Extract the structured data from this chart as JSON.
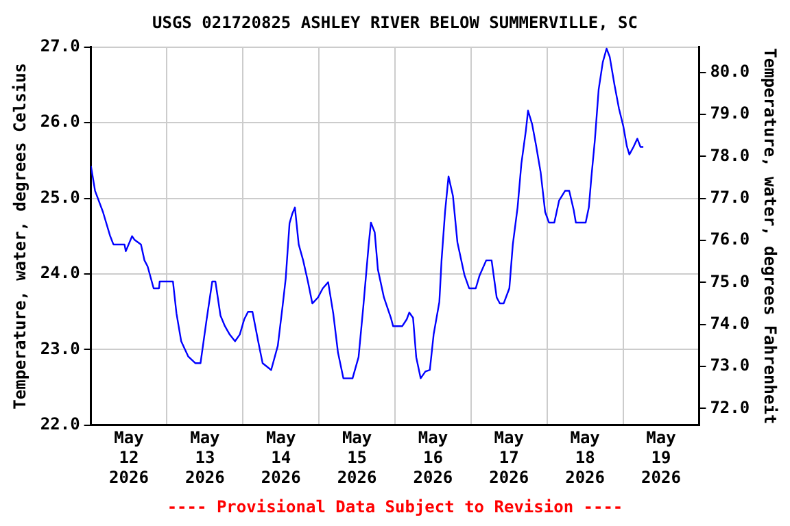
{
  "chart_data": {
    "type": "line",
    "title": "USGS 021720825 ASHLEY RIVER BELOW SUMMERVILLE, SC",
    "ylabel": "Temperature, water, degrees Celsius",
    "y2label": "Temperature, water, degrees Fahrenheit",
    "annotations": [
      "---- Provisional Data Subject to Revision ----"
    ],
    "xlim": [
      "2026-05-12T00:00",
      "2026-05-20T00:00"
    ],
    "xticks": [
      {
        "value": "2026-05-12T12:00",
        "label": "May 12 2026"
      },
      {
        "value": "2026-05-13T00:00",
        "label": null
      },
      {
        "value": "2026-05-13T12:00",
        "label": "May 13 2026"
      },
      {
        "value": "2026-05-14T00:00",
        "label": null
      },
      {
        "value": "2026-05-14T12:00",
        "label": "May 14 2026"
      },
      {
        "value": "2026-05-15T00:00",
        "label": null
      },
      {
        "value": "2026-05-15T12:00",
        "label": "May 15 2026"
      },
      {
        "value": "2026-05-16T00:00",
        "label": null
      },
      {
        "value": "2026-05-16T12:00",
        "label": "May 16 2026"
      },
      {
        "value": "2026-05-17T00:00",
        "label": null
      },
      {
        "value": "2026-05-17T12:00",
        "label": "May 17 2026"
      },
      {
        "value": "2026-05-18T00:00",
        "label": null
      },
      {
        "value": "2026-05-18T12:00",
        "label": "May 18 2026"
      },
      {
        "value": "2026-05-19T00:00",
        "label": null
      },
      {
        "value": "2026-05-19T12:00",
        "label": "May 19 2026"
      }
    ],
    "ylim": [
      22,
      27
    ],
    "yticks": [
      {
        "value": 22,
        "label": "22.0"
      },
      {
        "value": 23,
        "label": "23.0"
      },
      {
        "value": 24,
        "label": "24.0"
      },
      {
        "value": 25,
        "label": "25.0"
      },
      {
        "value": 26,
        "label": "26.0"
      },
      {
        "value": 27,
        "label": "27.0"
      }
    ],
    "y2lim": [
      71.6,
      80.6
    ],
    "y2ticks": [
      {
        "value": 72,
        "label": "72.0"
      },
      {
        "value": 73,
        "label": "73.0"
      },
      {
        "value": 74,
        "label": "74.0"
      },
      {
        "value": 75,
        "label": "75.0"
      },
      {
        "value": 76,
        "label": "76.0"
      },
      {
        "value": 77,
        "label": "77.0"
      },
      {
        "value": 78,
        "label": "78.0"
      },
      {
        "value": 79,
        "label": "79.0"
      },
      {
        "value": 80,
        "label": "80.0"
      }
    ],
    "grid": true,
    "legend": false,
    "marker": "none",
    "line_style": "solid",
    "series": [
      {
        "color": "#0000ff",
        "x": [
          "2026-05-12T00:00",
          "2026-05-12T01:18",
          "2026-05-12T03:48",
          "2026-05-12T06:00",
          "2026-05-12T07:06",
          "2026-05-12T10:36",
          "2026-05-12T11:00",
          "2026-05-12T13:00",
          "2026-05-12T13:48",
          "2026-05-12T15:48",
          "2026-05-12T16:54",
          "2026-05-12T17:54",
          "2026-05-12T19:48",
          "2026-05-12T21:30",
          "2026-05-12T21:42",
          "2026-05-13T01:54",
          "2026-05-13T03:00",
          "2026-05-13T04:30",
          "2026-05-13T06:42",
          "2026-05-13T09:00",
          "2026-05-13T10:36",
          "2026-05-13T12:30",
          "2026-05-13T14:18",
          "2026-05-13T15:18",
          "2026-05-13T16:54",
          "2026-05-13T18:18",
          "2026-05-13T19:48",
          "2026-05-13T21:30",
          "2026-05-13T23:00",
          "2026-05-14T00:24",
          "2026-05-14T01:36",
          "2026-05-14T03:00",
          "2026-05-14T04:48",
          "2026-05-14T06:12",
          "2026-05-14T08:54",
          "2026-05-14T11:00",
          "2026-05-14T12:30",
          "2026-05-14T13:30",
          "2026-05-14T14:42",
          "2026-05-14T15:36",
          "2026-05-14T16:24",
          "2026-05-14T17:36",
          "2026-05-14T19:00",
          "2026-05-14T20:30",
          "2026-05-14T21:54",
          "2026-05-14T23:42",
          "2026-05-15T01:12",
          "2026-05-15T02:54",
          "2026-05-15T04:30",
          "2026-05-15T06:00",
          "2026-05-15T07:42",
          "2026-05-15T10:36",
          "2026-05-15T12:30",
          "2026-05-15T14:00",
          "2026-05-15T15:42",
          "2026-05-15T16:24",
          "2026-05-15T17:36",
          "2026-05-15T18:36",
          "2026-05-15T20:30",
          "2026-05-15T22:42",
          "2026-05-15T23:24",
          "2026-05-16T02:18",
          "2026-05-16T03:42",
          "2026-05-16T04:30",
          "2026-05-16T05:42",
          "2026-05-16T06:42",
          "2026-05-16T08:06",
          "2026-05-16T09:36",
          "2026-05-16T11:00",
          "2026-05-16T12:12",
          "2026-05-16T14:00",
          "2026-05-16T14:42",
          "2026-05-16T15:48",
          "2026-05-16T16:54",
          "2026-05-16T18:18",
          "2026-05-16T19:42",
          "2026-05-16T21:54",
          "2026-05-16T23:24",
          "2026-05-17T01:30",
          "2026-05-17T02:42",
          "2026-05-17T04:48",
          "2026-05-17T06:30",
          "2026-05-17T08:06",
          "2026-05-17T09:06",
          "2026-05-17T10:18",
          "2026-05-17T12:06",
          "2026-05-17T13:12",
          "2026-05-17T14:42",
          "2026-05-17T15:54",
          "2026-05-17T17:18",
          "2026-05-17T18:00",
          "2026-05-17T19:18",
          "2026-05-17T20:30",
          "2026-05-17T22:00",
          "2026-05-17T23:24",
          "2026-05-18T00:36",
          "2026-05-18T02:18",
          "2026-05-18T03:48",
          "2026-05-18T05:42",
          "2026-05-18T07:00",
          "2026-05-18T08:24",
          "2026-05-18T09:06",
          "2026-05-18T12:12",
          "2026-05-18T13:12",
          "2026-05-18T14:00",
          "2026-05-18T15:06",
          "2026-05-18T16:18",
          "2026-05-18T17:36",
          "2026-05-18T18:48",
          "2026-05-18T19:48",
          "2026-05-18T21:18",
          "2026-05-18T22:42",
          "2026-05-19T00:06",
          "2026-05-19T01:12",
          "2026-05-19T02:00",
          "2026-05-19T03:18",
          "2026-05-19T04:30",
          "2026-05-19T05:30",
          "2026-05-19T06:24"
        ],
        "values": [
          25.43,
          25.1,
          24.82,
          24.51,
          24.39,
          24.39,
          24.3,
          24.5,
          24.45,
          24.39,
          24.18,
          24.1,
          23.81,
          23.81,
          23.9,
          23.9,
          23.48,
          23.11,
          22.91,
          22.82,
          22.82,
          23.39,
          23.9,
          23.9,
          23.45,
          23.31,
          23.2,
          23.11,
          23.2,
          23.4,
          23.5,
          23.5,
          23.11,
          22.82,
          22.73,
          23.05,
          23.57,
          23.94,
          24.67,
          24.8,
          24.88,
          24.39,
          24.18,
          23.9,
          23.61,
          23.69,
          23.81,
          23.89,
          23.48,
          22.96,
          22.62,
          22.62,
          22.9,
          23.57,
          24.39,
          24.68,
          24.55,
          24.06,
          23.69,
          23.42,
          23.31,
          23.31,
          23.4,
          23.49,
          23.42,
          22.9,
          22.62,
          22.71,
          22.73,
          23.2,
          23.63,
          24.18,
          24.82,
          25.29,
          25.03,
          24.42,
          23.99,
          23.81,
          23.81,
          23.98,
          24.18,
          24.18,
          23.69,
          23.61,
          23.61,
          23.81,
          24.39,
          24.88,
          25.46,
          25.89,
          26.16,
          25.98,
          25.71,
          25.34,
          24.82,
          24.68,
          24.68,
          24.97,
          25.1,
          25.1,
          24.85,
          24.68,
          24.68,
          24.88,
          25.28,
          25.77,
          26.44,
          26.8,
          26.98,
          26.87,
          26.5,
          26.19,
          25.95,
          25.69,
          25.58,
          25.68,
          25.79,
          25.68,
          25.68
        ]
      }
    ]
  }
}
